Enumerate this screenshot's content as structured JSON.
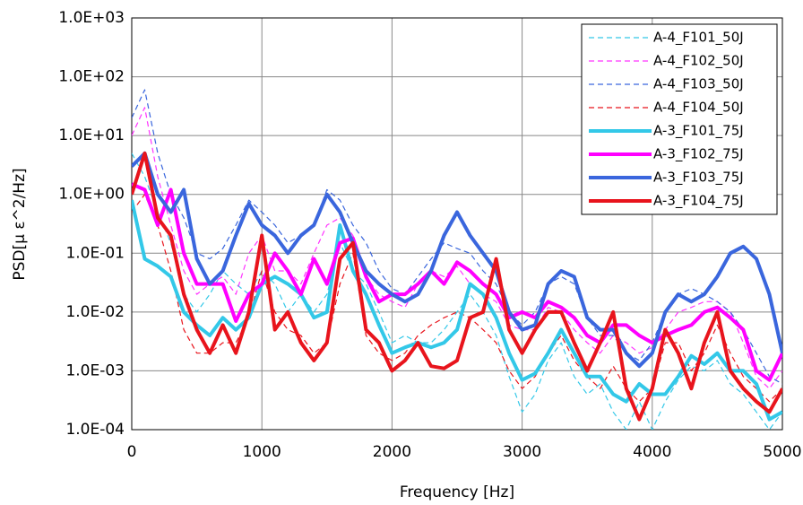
{
  "chart_data": {
    "type": "line",
    "x_label": "Frequency [Hz]",
    "y_label": "PSD[μ ε^2/Hz]",
    "log_y": true,
    "grid": true,
    "legend": "upper right",
    "xlim": [
      0,
      5000
    ],
    "xticks": [
      0,
      1000,
      2000,
      3000,
      4000,
      5000
    ],
    "ylim": [
      0.0001,
      1000
    ],
    "yticks": [
      {
        "value": 0.0001,
        "label": "1.0E-04"
      },
      {
        "value": 0.001,
        "label": "1.0E-03"
      },
      {
        "value": 0.01,
        "label": "1.0E-02"
      },
      {
        "value": 0.1,
        "label": "1.0E-01"
      },
      {
        "value": 1,
        "label": "1.0E+00"
      },
      {
        "value": 10,
        "label": "1.0E+01"
      },
      {
        "value": 100,
        "label": "1.0E+02"
      },
      {
        "value": 1000,
        "label": "1.0E+03"
      }
    ],
    "x": [
      0,
      100,
      200,
      300,
      400,
      500,
      600,
      700,
      800,
      900,
      1000,
      1100,
      1200,
      1300,
      1400,
      1500,
      1600,
      1700,
      1800,
      1900,
      2000,
      2100,
      2200,
      2300,
      2400,
      2500,
      2600,
      2700,
      2800,
      2900,
      3000,
      3100,
      3200,
      3300,
      3400,
      3500,
      3600,
      3700,
      3800,
      3900,
      4000,
      4100,
      4200,
      4300,
      4400,
      4500,
      4600,
      4700,
      4800,
      4900,
      5000
    ],
    "series": [
      {
        "name": "A-4_F101_50J",
        "color": "#33c8e8",
        "style": "dashed",
        "values": [
          5,
          2,
          0.5,
          0.15,
          0.02,
          0.01,
          0.02,
          0.05,
          0.03,
          0.02,
          0.05,
          0.03,
          0.01,
          0.02,
          0.01,
          0.02,
          0.15,
          0.05,
          0.03,
          0.01,
          0.003,
          0.004,
          0.003,
          0.003,
          0.005,
          0.01,
          0.02,
          0.01,
          0.004,
          0.0008,
          0.0002,
          0.0004,
          0.0015,
          0.003,
          0.0008,
          0.0004,
          0.0006,
          0.0002,
          0.0001,
          0.0003,
          0.0001,
          0.0003,
          0.0007,
          0.0012,
          0.001,
          0.0015,
          0.0006,
          0.0004,
          0.0002,
          0.0001,
          0.0002
        ]
      },
      {
        "name": "A-4_F102_50J",
        "color": "#ff33ff",
        "style": "dashed",
        "values": [
          10,
          30,
          2,
          0.3,
          0.05,
          0.02,
          0.03,
          0.04,
          0.02,
          0.1,
          0.2,
          0.05,
          0.05,
          0.03,
          0.1,
          0.3,
          0.4,
          0.2,
          0.04,
          0.02,
          0.015,
          0.012,
          0.03,
          0.05,
          0.04,
          0.06,
          0.03,
          0.02,
          0.015,
          0.006,
          0.005,
          0.005,
          0.012,
          0.01,
          0.005,
          0.003,
          0.002,
          0.004,
          0.003,
          0.002,
          0.0025,
          0.005,
          0.01,
          0.012,
          0.015,
          0.015,
          0.01,
          0.003,
          0.0008,
          0.0005,
          0.001
        ]
      },
      {
        "name": "A-4_F103_50J",
        "color": "#3a66dd",
        "style": "dashed",
        "values": [
          20,
          60,
          5,
          1,
          0.4,
          0.1,
          0.08,
          0.12,
          0.3,
          0.8,
          0.5,
          0.3,
          0.15,
          0.2,
          0.3,
          1.2,
          0.8,
          0.3,
          0.15,
          0.05,
          0.025,
          0.02,
          0.04,
          0.08,
          0.15,
          0.12,
          0.1,
          0.05,
          0.03,
          0.01,
          0.006,
          0.01,
          0.03,
          0.04,
          0.03,
          0.008,
          0.004,
          0.004,
          0.002,
          0.0015,
          0.003,
          0.01,
          0.02,
          0.025,
          0.02,
          0.015,
          0.01,
          0.005,
          0.002,
          0.0008,
          0.0006
        ]
      },
      {
        "name": "A-4_F104_50J",
        "color": "#e8141c",
        "style": "dashed",
        "values": [
          0.5,
          1,
          0.3,
          0.05,
          0.005,
          0.002,
          0.002,
          0.003,
          0.003,
          0.008,
          0.05,
          0.01,
          0.005,
          0.004,
          0.002,
          0.003,
          0.03,
          0.1,
          0.004,
          0.002,
          0.0015,
          0.002,
          0.004,
          0.006,
          0.008,
          0.01,
          0.008,
          0.005,
          0.003,
          0.001,
          0.0005,
          0.0008,
          0.002,
          0.004,
          0.0015,
          0.0008,
          0.0005,
          0.0012,
          0.0005,
          0.0003,
          0.0005,
          0.003,
          0.003,
          0.001,
          0.002,
          0.006,
          0.002,
          0.0008,
          0.0005,
          0.0003,
          0.0005
        ]
      },
      {
        "name": "A-3_F101_75J",
        "color": "#33c8e8",
        "style": "solid",
        "values": [
          0.8,
          0.08,
          0.06,
          0.04,
          0.01,
          0.006,
          0.004,
          0.008,
          0.005,
          0.008,
          0.03,
          0.04,
          0.03,
          0.02,
          0.008,
          0.01,
          0.3,
          0.05,
          0.02,
          0.006,
          0.002,
          0.0025,
          0.003,
          0.0025,
          0.003,
          0.005,
          0.03,
          0.02,
          0.008,
          0.002,
          0.0007,
          0.0009,
          0.002,
          0.005,
          0.002,
          0.0008,
          0.0008,
          0.0004,
          0.0003,
          0.0006,
          0.0004,
          0.0004,
          0.0008,
          0.0018,
          0.0013,
          0.002,
          0.001,
          0.001,
          0.0006,
          0.00015,
          0.0002
        ]
      },
      {
        "name": "A-3_F102_75J",
        "color": "#ff00ff",
        "style": "solid",
        "values": [
          1.5,
          1.2,
          0.3,
          1.2,
          0.1,
          0.03,
          0.03,
          0.03,
          0.007,
          0.02,
          0.03,
          0.1,
          0.05,
          0.02,
          0.08,
          0.03,
          0.15,
          0.18,
          0.04,
          0.015,
          0.02,
          0.02,
          0.03,
          0.05,
          0.03,
          0.07,
          0.05,
          0.03,
          0.02,
          0.008,
          0.01,
          0.008,
          0.015,
          0.012,
          0.008,
          0.004,
          0.003,
          0.006,
          0.006,
          0.004,
          0.003,
          0.004,
          0.005,
          0.006,
          0.01,
          0.012,
          0.008,
          0.005,
          0.001,
          0.0007,
          0.002
        ]
      },
      {
        "name": "A-3_F103_75J",
        "color": "#3a66dd",
        "style": "solid",
        "values": [
          3,
          5,
          1,
          0.5,
          1.2,
          0.08,
          0.03,
          0.05,
          0.2,
          0.7,
          0.3,
          0.2,
          0.1,
          0.2,
          0.3,
          1,
          0.5,
          0.15,
          0.05,
          0.03,
          0.02,
          0.015,
          0.02,
          0.05,
          0.2,
          0.5,
          0.2,
          0.1,
          0.05,
          0.01,
          0.005,
          0.006,
          0.03,
          0.05,
          0.04,
          0.008,
          0.005,
          0.005,
          0.002,
          0.0012,
          0.002,
          0.01,
          0.02,
          0.015,
          0.02,
          0.04,
          0.1,
          0.13,
          0.08,
          0.02,
          0.002
        ]
      },
      {
        "name": "A-3_F104_75J",
        "color": "#e8141c",
        "style": "solid",
        "values": [
          1,
          5,
          0.4,
          0.2,
          0.02,
          0.005,
          0.002,
          0.006,
          0.002,
          0.01,
          0.2,
          0.005,
          0.01,
          0.003,
          0.0015,
          0.003,
          0.08,
          0.15,
          0.005,
          0.003,
          0.001,
          0.0015,
          0.003,
          0.0012,
          0.0011,
          0.0015,
          0.008,
          0.01,
          0.08,
          0.005,
          0.002,
          0.005,
          0.01,
          0.01,
          0.003,
          0.001,
          0.003,
          0.01,
          0.0005,
          0.00015,
          0.0005,
          0.005,
          0.002,
          0.0005,
          0.003,
          0.01,
          0.001,
          0.0005,
          0.0003,
          0.0002,
          0.0005
        ]
      }
    ]
  }
}
